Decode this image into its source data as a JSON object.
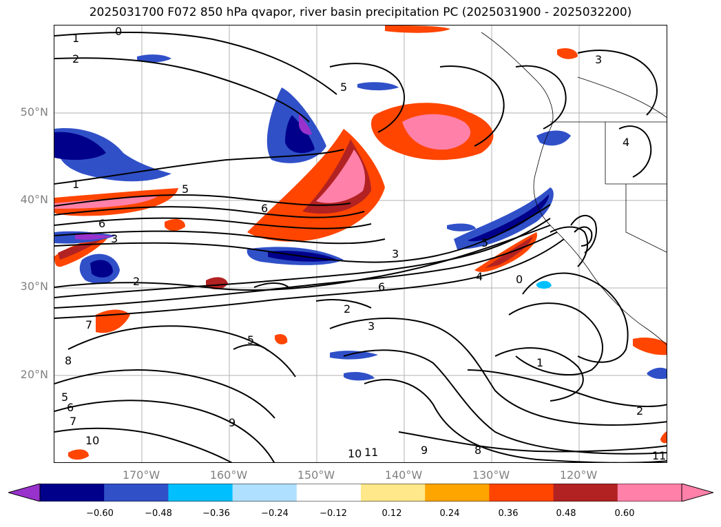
{
  "title": "2025031700 F072 850 hPa qvapor, river basin precipitation PC (2025031900 - 2025032200)",
  "map": {
    "lat_labels": [
      "50°N",
      "40°N",
      "30°N",
      "20°N"
    ],
    "lon_labels": [
      "170°W",
      "160°W",
      "150°W",
      "140°W",
      "130°W",
      "120°W"
    ],
    "contour_labels": [
      "0",
      "1",
      "2",
      "1",
      "5",
      "6",
      "3",
      "2",
      "6",
      "5",
      "3",
      "2",
      "6",
      "3",
      "4",
      "5",
      "0",
      "1",
      "8",
      "7",
      "5",
      "6",
      "7",
      "9",
      "10",
      "11",
      "9",
      "8",
      "10",
      "11",
      "2",
      "3",
      "4",
      "5"
    ],
    "gridline_color": "#b0b0b0"
  },
  "colorbar": {
    "ticks": [
      "−0.60",
      "−0.48",
      "−0.36",
      "−0.24",
      "−0.12",
      "0.12",
      "0.24",
      "0.36",
      "0.48",
      "0.60"
    ],
    "colors": [
      "#9932cc",
      "#00008b",
      "#3050c8",
      "#00bfff",
      "#b0e0ff",
      "#ffffff",
      "#ffe88a",
      "#ffa500",
      "#ff4500",
      "#b22222",
      "#ff80a8",
      "#ff80a8"
    ],
    "extend": "both"
  }
}
